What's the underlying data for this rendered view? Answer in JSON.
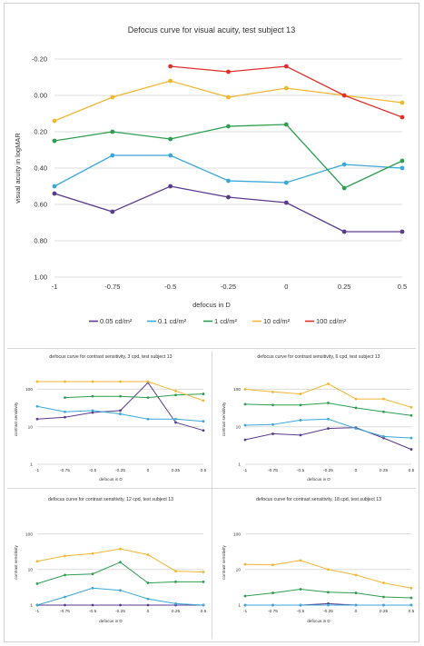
{
  "colors": {
    "0.05 cd/m²": "#5b3a8c",
    "0.1 cd/m²": "#3aa8d8",
    "1 cd/m²": "#2e9e4f",
    "10 cd/m²": "#f2b632",
    "100 cd/m²": "#e0302a",
    "grid": "#dcdcdc"
  },
  "chart_data": [
    {
      "type": "line",
      "title": "Defocus curve for visual acuity, test subject 13",
      "xlabel": "defocus in D",
      "ylabel": "visual acuity in logMAR",
      "categories": [
        "-1",
        "-0.75",
        "-0.5",
        "-0.25",
        "0",
        "0.25",
        "0.5"
      ],
      "y_tick_labels": [
        "-0.20",
        "0.00",
        "0.20",
        "0.40",
        "0.60",
        "0.80",
        "1.00"
      ],
      "y_ticks": [
        -0.2,
        0.0,
        0.2,
        0.4,
        0.6,
        0.8,
        1.0
      ],
      "ylim": [
        -0.2,
        1.0
      ],
      "y_inverted": true,
      "grid": true,
      "legend": "bottom",
      "series": [
        {
          "name": "0.05 cd/m²",
          "values": [
            0.54,
            0.64,
            0.5,
            0.56,
            0.59,
            0.75,
            0.75
          ]
        },
        {
          "name": "0.1 cd/m²",
          "values": [
            0.5,
            0.33,
            0.33,
            0.47,
            0.48,
            0.38,
            0.4
          ]
        },
        {
          "name": "1 cd/m²",
          "values": [
            0.25,
            0.2,
            0.24,
            0.17,
            0.16,
            0.51,
            0.36
          ]
        },
        {
          "name": "10 cd/m²",
          "values": [
            0.14,
            0.01,
            -0.08,
            0.01,
            -0.04,
            0.0,
            0.04
          ]
        },
        {
          "name": "100 cd/m²",
          "values": [
            null,
            null,
            -0.16,
            -0.13,
            -0.16,
            0.0,
            0.12
          ]
        }
      ]
    },
    {
      "type": "line",
      "title": "defocus curve for contrast sensitivity, 3 cpd, test subject 13",
      "xlabel": "defocus in D",
      "ylabel": "contrast sensitivity",
      "categories": [
        "-1",
        "-0.75",
        "-0.5",
        "-0.25",
        "0",
        "0.25",
        "0.5"
      ],
      "y_scale": "log",
      "y_tick_labels": [
        "1",
        "10",
        "100"
      ],
      "ylim": [
        1,
        250
      ],
      "grid": true,
      "series": [
        {
          "name": "0.05 cd/m²",
          "values": [
            16,
            18,
            24,
            27,
            150,
            13,
            8
          ]
        },
        {
          "name": "0.1 cd/m²",
          "values": [
            35,
            25,
            27,
            22,
            16,
            16,
            14
          ]
        },
        {
          "name": "1 cd/m²",
          "values": [
            null,
            60,
            65,
            65,
            60,
            70,
            75
          ]
        },
        {
          "name": "10 cd/m²",
          "values": [
            160,
            160,
            160,
            160,
            160,
            90,
            50
          ]
        }
      ]
    },
    {
      "type": "line",
      "title": "defocus curve for contrast sensitivity, 6 cpd, test subject 13",
      "xlabel": "defocus in D",
      "ylabel": "contrast sensitivity",
      "categories": [
        "-1",
        "-0.75",
        "-0.5",
        "-0.25",
        "0",
        "0.25",
        "0.5"
      ],
      "y_scale": "log",
      "y_tick_labels": [
        "1",
        "10",
        "100"
      ],
      "ylim": [
        1,
        250
      ],
      "grid": true,
      "series": [
        {
          "name": "0.05 cd/m²",
          "values": [
            4.5,
            6.5,
            6,
            9,
            9.5,
            5,
            2.5
          ]
        },
        {
          "name": "0.1 cd/m²",
          "values": [
            11,
            11.5,
            15,
            16,
            9,
            5.5,
            5
          ]
        },
        {
          "name": "1 cd/m²",
          "values": [
            40,
            38,
            38,
            43,
            32,
            25,
            20
          ]
        },
        {
          "name": "10 cd/m²",
          "values": [
            100,
            85,
            75,
            140,
            55,
            55,
            33
          ]
        }
      ]
    },
    {
      "type": "line",
      "title": "defocus curve for contrast sensitivity, 12 cpd, test subject 13",
      "xlabel": "defocus in D",
      "ylabel": "contrast sensitivity",
      "categories": [
        "-1",
        "-0.75",
        "-0.5",
        "-0.25",
        "0",
        "0.25",
        "0.5"
      ],
      "y_scale": "log",
      "y_tick_labels": [
        "1",
        "10",
        "100"
      ],
      "ylim": [
        1,
        250
      ],
      "grid": true,
      "series": [
        {
          "name": "0.05 cd/m²",
          "values": [
            1,
            1,
            1,
            1,
            1,
            1,
            1
          ]
        },
        {
          "name": "0.1 cd/m²",
          "values": [
            1,
            1.7,
            3,
            2.6,
            1.5,
            1.1,
            1
          ]
        },
        {
          "name": "1 cd/m²",
          "values": [
            4,
            7,
            7.5,
            16,
            4.2,
            4.5,
            4.5
          ]
        },
        {
          "name": "10 cd/m²",
          "values": [
            17,
            24,
            28,
            38,
            26,
            9,
            8.5
          ]
        }
      ]
    },
    {
      "type": "line",
      "title": "defocus curve for contrast sensitivity, 18 cpd, test subject 13",
      "xlabel": "defocus in D",
      "ylabel": "contrast sensitivity",
      "categories": [
        "-1",
        "-0.75",
        "-0.5",
        "-0.25",
        "0",
        "0.25",
        "0.5"
      ],
      "y_scale": "log",
      "y_tick_labels": [
        "1",
        "10",
        "100"
      ],
      "ylim": [
        1,
        250
      ],
      "grid": true,
      "series": [
        {
          "name": "0.05 cd/m²",
          "values": [
            1,
            1,
            1,
            1.1,
            1,
            1,
            1
          ]
        },
        {
          "name": "0.1 cd/m²",
          "values": [
            1,
            1,
            1,
            1,
            1,
            1,
            1
          ]
        },
        {
          "name": "1 cd/m²",
          "values": [
            1.8,
            2.2,
            2.8,
            2.3,
            2.2,
            1.7,
            1.6
          ]
        },
        {
          "name": "10 cd/m²",
          "values": [
            14,
            13.5,
            18,
            10,
            7,
            4.2,
            3
          ]
        }
      ]
    }
  ]
}
